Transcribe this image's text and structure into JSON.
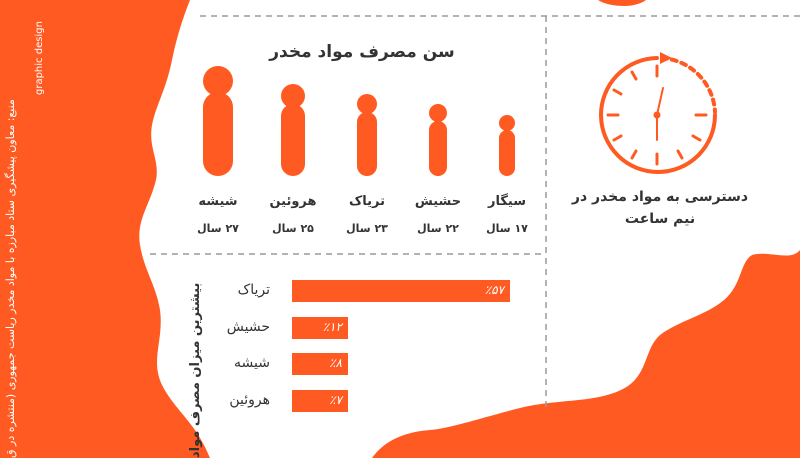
{
  "colors": {
    "accent": "#ff5a21",
    "text": "#333333",
    "background": "#ffffff",
    "divider": "#9a9a9a"
  },
  "age_section": {
    "title": "سن مصرف مواد مخدر",
    "items": [
      {
        "name": "شیشه",
        "age": "۲۷ سال"
      },
      {
        "name": "هروئین",
        "age": "۲۵ سال"
      },
      {
        "name": "تریاک",
        "age": "۲۳ سال"
      },
      {
        "name": "حشیش",
        "age": "۲۲ سال"
      },
      {
        "name": "سیگار",
        "age": "۱۷ سال"
      }
    ]
  },
  "access_section": {
    "icon": "stopwatch-icon",
    "text": "دسترسی به مواد مخدر در نیم ساعت"
  },
  "usage_section": {
    "title": "بیشترین میزان مصرف مواد",
    "bars": [
      {
        "name": "تریاک",
        "label": "٪۵۷",
        "value": 57
      },
      {
        "name": "حشیش",
        "label": "٪۱۲",
        "value": 12
      },
      {
        "name": "شیشه",
        "label": "٪۸",
        "value": 8
      },
      {
        "name": "هروئین",
        "label": "٪۷",
        "value": 7
      }
    ]
  },
  "source": {
    "text": "منبع: معاون پیشگیری ستاد مبارزه با مواد مخدر ریاست جمهوری (منتشره در ق",
    "credit": "graphic design"
  },
  "chart_data": {
    "type": "bar",
    "title": "بیشترین میزان مصرف مواد",
    "categories": [
      "تریاک",
      "حشیش",
      "شیشه",
      "هروئین"
    ],
    "values": [
      57,
      12,
      8,
      7
    ],
    "unit": "%"
  }
}
